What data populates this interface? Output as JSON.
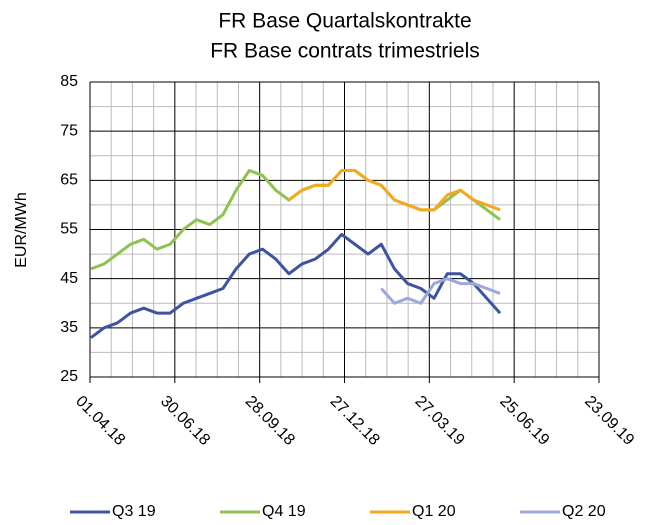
{
  "chart_data": {
    "type": "line",
    "title": [
      "FR Base Quartalskontrakte",
      "FR Base contrats trimestriels"
    ],
    "y_label": "EUR/MWh",
    "x": [
      "2018-04-02",
      "2018-04-16",
      "2018-04-30",
      "2018-05-14",
      "2018-05-28",
      "2018-06-11",
      "2018-06-25",
      "2018-07-09",
      "2018-07-23",
      "2018-08-06",
      "2018-08-20",
      "2018-09-03",
      "2018-09-17",
      "2018-10-01",
      "2018-10-15",
      "2018-10-29",
      "2018-11-12",
      "2018-11-26",
      "2018-12-10",
      "2018-12-24",
      "2019-01-07",
      "2019-01-21",
      "2019-02-04",
      "2019-02-18",
      "2019-03-04",
      "2019-03-18",
      "2019-04-01",
      "2019-04-15",
      "2019-04-29",
      "2019-05-13",
      "2019-05-27",
      "2019-06-10"
    ],
    "series": [
      {
        "name": "Q3 19",
        "color": "#3f54a0",
        "values": [
          33,
          35,
          36,
          38,
          39,
          38,
          38,
          40,
          41,
          42,
          43,
          47,
          50,
          51,
          49,
          46,
          48,
          49,
          51,
          54,
          52,
          50,
          52,
          47,
          44,
          43,
          41,
          46,
          46,
          44,
          41,
          38
        ]
      },
      {
        "name": "Q4 19",
        "color": "#8fc250",
        "values": [
          47,
          48,
          50,
          52,
          53,
          51,
          52,
          55,
          57,
          56,
          58,
          63,
          67,
          66,
          63,
          61,
          63,
          64,
          64,
          67,
          67,
          65,
          64,
          61,
          60,
          59,
          59,
          61,
          63,
          61,
          59,
          57
        ]
      },
      {
        "name": "Q1 20",
        "color": "#f5a81c",
        "values": [
          null,
          null,
          null,
          null,
          null,
          null,
          null,
          null,
          null,
          null,
          null,
          null,
          null,
          null,
          null,
          61,
          63,
          64,
          64,
          67,
          67,
          65,
          64,
          61,
          60,
          59,
          59,
          62,
          63,
          61,
          60,
          59
        ]
      },
      {
        "name": "Q2 20",
        "color": "#9ba9d8",
        "values": [
          null,
          null,
          null,
          null,
          null,
          null,
          null,
          null,
          null,
          null,
          null,
          null,
          null,
          null,
          null,
          null,
          null,
          null,
          null,
          null,
          null,
          null,
          43,
          40,
          41,
          40,
          44,
          45,
          44,
          44,
          43,
          42
        ]
      }
    ],
    "xlim": [
      "2018-04-01",
      "2019-09-23"
    ],
    "xticks": [
      {
        "value": "2018-04-01",
        "label": "01.04.18"
      },
      {
        "value": "2018-06-30",
        "label": "30.06.18"
      },
      {
        "value": "2018-09-28",
        "label": "28.09.18"
      },
      {
        "value": "2018-12-27",
        "label": "27.12.18"
      },
      {
        "value": "2019-03-27",
        "label": "27.03.19"
      },
      {
        "value": "2019-06-25",
        "label": "25.06.19"
      },
      {
        "value": "2019-09-23",
        "label": "23.09.19"
      }
    ],
    "ylim": [
      25,
      85
    ],
    "yticks": [
      25,
      35,
      45,
      55,
      65,
      75,
      85
    ],
    "grid": true,
    "legend": "bottom"
  }
}
